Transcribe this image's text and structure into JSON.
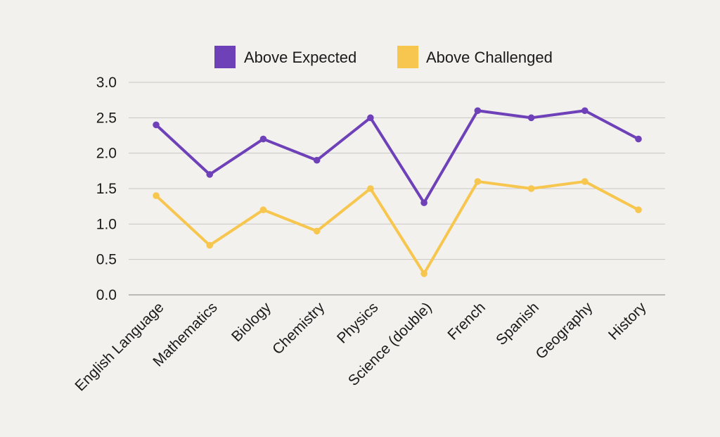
{
  "chart_data": {
    "type": "line",
    "categories": [
      "English Language",
      "Mathematics",
      "Biology",
      "Chemistry",
      "Physics",
      "Science (double)",
      "French",
      "Spanish",
      "Geography",
      "History"
    ],
    "series": [
      {
        "name": "Above Expected",
        "color": "#6e41b8",
        "values": [
          2.4,
          1.7,
          2.2,
          1.9,
          2.5,
          1.3,
          2.6,
          2.5,
          2.6,
          2.2
        ]
      },
      {
        "name": "Above Challenged",
        "color": "#f7c64f",
        "values": [
          1.4,
          0.7,
          1.2,
          0.9,
          1.5,
          0.3,
          1.6,
          1.5,
          1.6,
          1.2
        ]
      }
    ],
    "yticks": [
      "0.0",
      "0.5",
      "1.0",
      "1.5",
      "2.0",
      "2.5",
      "3.0"
    ],
    "ylim": [
      0,
      3
    ],
    "grid": true,
    "legend_position": "top-center",
    "title": "",
    "xlabel": "",
    "ylabel": ""
  }
}
